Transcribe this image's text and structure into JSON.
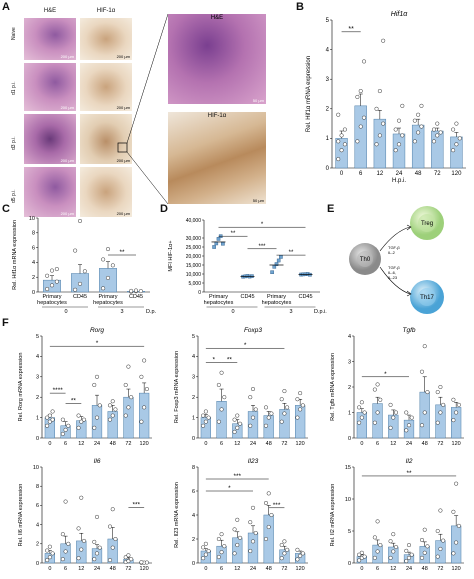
{
  "panels": {
    "A": {
      "label": "A",
      "col_titles": [
        "H&E",
        "HIF-1α"
      ],
      "row_labels": [
        "Naive",
        "d1 p.i.",
        "d3 p.i.",
        "d5 p.i."
      ],
      "scale_bar": "200 µm",
      "zoom_he_title": "H&E",
      "zoom_hif_title": "HIF-1α",
      "zoom_scale": "50 µm"
    },
    "B": {
      "label": "B"
    },
    "C": {
      "label": "C"
    },
    "D": {
      "label": "D"
    },
    "E": {
      "label": "E",
      "nodes": [
        "Th0",
        "Treg",
        "Th17"
      ],
      "arrow_top": [
        "TGF-β",
        "IL-2"
      ],
      "arrow_bottom": [
        "TGF-β",
        "IL-6,",
        "IL-23"
      ]
    },
    "F": {
      "label": "F"
    }
  },
  "chart_data": [
    {
      "id": "B",
      "type": "bar",
      "title": "Hif1α",
      "ylabel": "Rel. Hif1α mRNA expression",
      "xlabel": "H.p.i.",
      "categories": [
        "0",
        "6",
        "12",
        "24",
        "48",
        "72",
        "120"
      ],
      "ylim": [
        0,
        5
      ],
      "yticks": [
        0,
        1,
        2,
        3,
        4,
        5
      ],
      "values": [
        1.0,
        2.1,
        1.65,
        1.15,
        1.45,
        1.25,
        1.05
      ],
      "errors": [
        0.25,
        0.4,
        0.3,
        0.2,
        0.2,
        0.1,
        0.15
      ],
      "points": [
        [
          0.3,
          0.6,
          0.8,
          0.9,
          1.1,
          1.3,
          1.8
        ],
        [
          0.9,
          1.4,
          1.7,
          2.4,
          2.6,
          3.6
        ],
        [
          0.8,
          1.1,
          1.5,
          2.0,
          2.6,
          4.3
        ],
        [
          0.6,
          0.8,
          1.1,
          1.3,
          1.6,
          2.1
        ],
        [
          0.9,
          1.2,
          1.4,
          1.6,
          1.8,
          2.1
        ],
        [
          0.9,
          1.1,
          1.2,
          1.3,
          1.5
        ],
        [
          0.6,
          0.8,
          1.0,
          1.3,
          1.5
        ]
      ],
      "sig": [
        {
          "from": 0,
          "to": 1,
          "text": "**",
          "y": 4.6
        }
      ]
    },
    {
      "id": "C",
      "type": "bar",
      "ylabel": "Rel. Hif1α mRNA expression",
      "xlabel_suffix": "D.p.i.",
      "categories": [
        "Primary\nhepatocytes",
        "CD45",
        "Primary\nhepatocytes",
        "CD45"
      ],
      "groups": [
        "0",
        "3"
      ],
      "ylim": [
        0,
        10
      ],
      "yticks": [
        0,
        2,
        4,
        6,
        8,
        10
      ],
      "values": [
        1.6,
        2.5,
        3.2,
        0.1
      ],
      "errors": [
        0.6,
        1.2,
        0.9,
        0.05
      ],
      "points": [
        [
          0.4,
          0.9,
          1.4,
          2.2,
          2.9,
          3.1
        ],
        [
          0.3,
          1.1,
          2.8,
          5.6,
          9.6
        ],
        [
          0.5,
          1.9,
          3.6,
          4.4,
          5.8
        ],
        [
          0.05,
          0.1,
          0.12,
          0.15,
          0.2
        ]
      ],
      "sig": [
        {
          "from": 2,
          "to": 3,
          "text": "**",
          "y": 5.0
        }
      ]
    },
    {
      "id": "D",
      "type": "scatter",
      "ylabel": "MFI HIF-1α+",
      "xlabel_suffix": "D.p.i.",
      "categories": [
        "Primary\nhepatocytes",
        "CD45",
        "Primary\nhepatocytes",
        "CD45"
      ],
      "groups": [
        "0",
        "3"
      ],
      "ylim": [
        0,
        40000
      ],
      "yticks": [
        0,
        5000,
        10000,
        15000,
        20000,
        25000,
        30000,
        40000
      ],
      "ytick_labels": [
        "0",
        "5,000",
        "10,000",
        "15,000",
        "20,000",
        "25,000",
        "30,000",
        "40,000"
      ],
      "means": [
        27800,
        8700,
        15000,
        9800
      ],
      "points": [
        [
          25000,
          27000,
          29500,
          31000,
          26800
        ],
        [
          8500,
          8700,
          8900,
          8600,
          8800
        ],
        [
          11000,
          14000,
          15500,
          17500,
          19500
        ],
        [
          9700,
          9800,
          9900,
          10000,
          9600
        ]
      ],
      "sig": [
        {
          "from": 0,
          "to": 1,
          "text": "**",
          "y": 31000
        },
        {
          "from": 0,
          "to": 3,
          "text": "*",
          "y": 36000
        },
        {
          "from": 1,
          "to": 2,
          "text": "***",
          "y": 24000
        },
        {
          "from": 2,
          "to": 3,
          "text": "**",
          "y": 20500
        }
      ]
    },
    {
      "id": "F1",
      "type": "bar",
      "title": "Rorg",
      "ylabel": "Rel. Rorg mRNA expression",
      "categories": [
        "0",
        "6",
        "12",
        "24",
        "48",
        "72",
        "120"
      ],
      "ylim": [
        0,
        5
      ],
      "yticks": [
        0,
        1,
        2,
        3,
        4,
        5
      ],
      "values": [
        1.0,
        0.6,
        0.85,
        1.6,
        1.3,
        2.0,
        2.2
      ],
      "errors": [
        0.15,
        0.2,
        0.2,
        0.5,
        0.3,
        0.4,
        0.5
      ],
      "points": [
        [
          0.6,
          0.8,
          0.9,
          1.0,
          1.1,
          1.3
        ],
        [
          0.2,
          0.4,
          0.6,
          0.9
        ],
        [
          0.5,
          0.8,
          0.9,
          1.1
        ],
        [
          0.5,
          1.0,
          1.6,
          2.6,
          3.0
        ],
        [
          0.9,
          1.1,
          1.4,
          1.6,
          1.8
        ],
        [
          1.1,
          1.5,
          2.0,
          2.6,
          3.5
        ],
        [
          0.8,
          1.5,
          2.4,
          3.0,
          3.8
        ]
      ],
      "sig": [
        {
          "from": 0,
          "to": 1,
          "text": "****",
          "y": 2.2
        },
        {
          "from": 1,
          "to": 2,
          "text": "**",
          "y": 1.7
        },
        {
          "from": 0,
          "to": 6,
          "text": "*",
          "y": 4.5
        }
      ]
    },
    {
      "id": "F2",
      "type": "bar",
      "title": "Foxp3",
      "ylabel": "Rel. Foxp3 mRNA expression",
      "categories": [
        "0",
        "6",
        "12",
        "24",
        "48",
        "72",
        "120"
      ],
      "ylim": [
        0,
        5
      ],
      "yticks": [
        0,
        1,
        2,
        3,
        4,
        5
      ],
      "values": [
        1.0,
        1.8,
        0.7,
        1.3,
        1.1,
        1.4,
        1.6
      ],
      "errors": [
        0.15,
        0.6,
        0.2,
        0.3,
        0.2,
        0.3,
        0.3
      ],
      "points": [
        [
          0.6,
          0.8,
          1.0,
          1.1,
          1.3
        ],
        [
          0.8,
          1.4,
          2.0,
          2.6,
          3.2
        ],
        [
          0.3,
          0.5,
          0.7,
          0.9,
          1.1
        ],
        [
          0.6,
          1.0,
          1.4,
          2.0,
          2.4
        ],
        [
          0.6,
          1.0,
          1.2,
          1.5
        ],
        [
          0.8,
          1.2,
          1.5,
          1.9,
          2.3
        ],
        [
          1.0,
          1.4,
          1.6,
          1.9,
          2.2
        ]
      ],
      "sig": [
        {
          "from": 0,
          "to": 1,
          "text": "*",
          "y": 3.7
        },
        {
          "from": 1,
          "to": 2,
          "text": "**",
          "y": 3.7
        },
        {
          "from": 0,
          "to": 5,
          "text": "*",
          "y": 4.4
        }
      ]
    },
    {
      "id": "F3",
      "type": "bar",
      "title": "Tgfb",
      "ylabel": "Rel. Tgfb mRNA expression",
      "categories": [
        "0",
        "6",
        "12",
        "24",
        "48",
        "72",
        "120"
      ],
      "ylim": [
        0,
        4
      ],
      "yticks": [
        0,
        1,
        2,
        3,
        4
      ],
      "values": [
        1.0,
        1.35,
        0.9,
        0.7,
        1.8,
        1.3,
        1.2
      ],
      "errors": [
        0.15,
        0.25,
        0.2,
        0.2,
        0.6,
        0.3,
        0.2
      ],
      "points": [
        [
          0.6,
          0.8,
          1.0,
          1.2,
          1.4
        ],
        [
          0.6,
          1.0,
          1.5,
          1.9,
          2.1
        ],
        [
          0.4,
          0.8,
          1.0,
          1.3
        ],
        [
          0.3,
          0.5,
          0.8,
          1.0
        ],
        [
          0.5,
          1.0,
          1.8,
          2.6,
          3.6
        ],
        [
          0.6,
          1.0,
          1.3,
          1.8,
          2.0
        ],
        [
          0.7,
          1.0,
          1.3,
          1.5
        ]
      ],
      "sig": [
        {
          "from": 0,
          "to": 3,
          "text": "*",
          "y": 2.4
        }
      ]
    },
    {
      "id": "F4",
      "type": "bar",
      "title": "Il6",
      "ylabel": "Rel. Il6 mRNA expression",
      "categories": [
        "0",
        "6",
        "12",
        "24",
        "48",
        "72",
        "120"
      ],
      "ylim": [
        0,
        10
      ],
      "yticks": [
        0,
        2,
        4,
        6,
        8,
        10
      ],
      "values": [
        1.0,
        2.0,
        2.3,
        1.5,
        2.5,
        0.4,
        0.05
      ],
      "errors": [
        0.3,
        0.8,
        0.8,
        0.4,
        1.2,
        0.15,
        0.03
      ],
      "points": [
        [
          0.3,
          0.6,
          1.0,
          1.3,
          1.7
        ],
        [
          0.4,
          1.2,
          2.0,
          3.0,
          6.4
        ],
        [
          0.5,
          1.4,
          2.3,
          3.6,
          6.8
        ],
        [
          0.4,
          1.0,
          1.6,
          2.2,
          4.8
        ],
        [
          0.3,
          1.6,
          2.5,
          3.8,
          5.6
        ],
        [
          0.1,
          0.2,
          0.4,
          0.6,
          0.8
        ],
        [
          0.02,
          0.04,
          0.05,
          0.08
        ]
      ],
      "sig": [
        {
          "from": 5,
          "to": 6,
          "text": "***",
          "y": 5.8
        }
      ]
    },
    {
      "id": "F5",
      "type": "bar",
      "title": "Il23",
      "ylabel": "Rel. Il23 mRNA expression",
      "categories": [
        "0",
        "6",
        "12",
        "24",
        "48",
        "72",
        "120"
      ],
      "ylim": [
        0,
        8
      ],
      "yticks": [
        0,
        2,
        4,
        6,
        8
      ],
      "values": [
        1.0,
        1.4,
        2.1,
        2.5,
        4.0,
        1.1,
        0.8
      ],
      "errors": [
        0.2,
        0.5,
        0.5,
        0.6,
        0.8,
        0.3,
        0.2
      ],
      "points": [
        [
          0.4,
          0.7,
          1.0,
          1.3,
          1.6
        ],
        [
          0.5,
          0.9,
          1.4,
          2.0,
          2.4
        ],
        [
          0.8,
          1.5,
          2.1,
          2.8,
          3.6
        ],
        [
          1.0,
          1.8,
          2.5,
          3.4,
          4.6
        ],
        [
          2.0,
          3.0,
          4.0,
          5.0,
          5.8
        ],
        [
          0.4,
          0.8,
          1.1,
          1.5,
          1.8
        ],
        [
          0.3,
          0.6,
          0.8,
          1.1
        ]
      ],
      "sig": [
        {
          "from": 0,
          "to": 3,
          "text": "*",
          "y": 6.0
        },
        {
          "from": 0,
          "to": 4,
          "text": "***",
          "y": 7.0
        },
        {
          "from": 4,
          "to": 5,
          "text": "***",
          "y": 4.6
        }
      ]
    },
    {
      "id": "F6",
      "type": "bar",
      "title": "Il2",
      "ylabel": "Rel. Il2 mRNA expression",
      "categories": [
        "0",
        "6",
        "12",
        "24",
        "48",
        "72",
        "120"
      ],
      "ylim": [
        0,
        15
      ],
      "yticks": [
        0,
        5,
        10,
        15
      ],
      "values": [
        1.0,
        2.8,
        2.5,
        1.3,
        2.6,
        3.5,
        5.8
      ],
      "errors": [
        0.3,
        0.8,
        0.6,
        0.4,
        0.7,
        1.0,
        1.6
      ],
      "points": [
        [
          0.4,
          0.8,
          1.0,
          1.3,
          1.6
        ],
        [
          0.8,
          1.8,
          2.8,
          4.0,
          6.5
        ],
        [
          0.8,
          1.8,
          2.5,
          3.4,
          4.5
        ],
        [
          0.3,
          0.8,
          1.3,
          1.9,
          2.8
        ],
        [
          0.8,
          1.6,
          2.6,
          3.6,
          5.2
        ],
        [
          1.0,
          2.2,
          3.5,
          5.0,
          8.2
        ],
        [
          1.5,
          3.2,
          5.8,
          8.0,
          12.4
        ]
      ],
      "sig": [
        {
          "from": 0,
          "to": 6,
          "text": "**",
          "y": 13.6
        }
      ]
    }
  ]
}
